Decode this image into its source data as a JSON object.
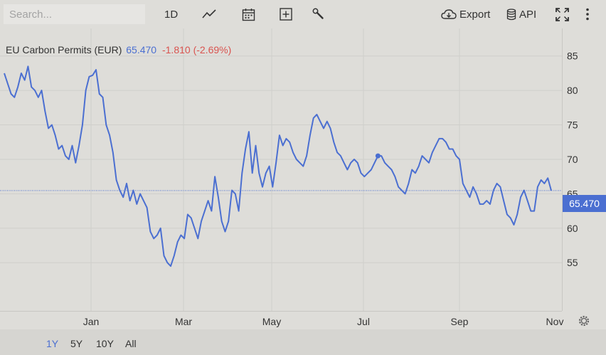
{
  "toolbar": {
    "search_placeholder": "Search...",
    "interval_label": "1D",
    "chart_type_icon": "line-chart-icon",
    "calendar_icon": "calendar-icon",
    "add_icon": "add-square-icon",
    "tools_icon": "wrench-icon",
    "export_label": "Export",
    "api_label": "API",
    "fullscreen_icon": "fullscreen-icon",
    "more_icon": "more-vertical-icon"
  },
  "legend": {
    "name": "EU Carbon Permits (EUR)",
    "last": "65.470",
    "change": "-1.810 (-2.69%)"
  },
  "price_tag": "65.470",
  "ranges": [
    "1Y",
    "5Y",
    "10Y",
    "All"
  ],
  "active_range": "1Y",
  "colors": {
    "line": "#4b6fd1",
    "down": "#d9534f",
    "background": "#deddd9",
    "grid": "#cfcecb"
  },
  "chart_data": {
    "type": "line",
    "title": "EU Carbon Permits (EUR)",
    "ylim": [
      48,
      89
    ],
    "y_ticks": [
      55,
      60,
      65,
      70,
      75,
      80,
      85
    ],
    "x_ticks": [
      "Jan",
      "Mar",
      "May",
      "Jul",
      "Sep",
      "Nov"
    ],
    "last_value": 65.47,
    "grid": true,
    "series": [
      {
        "values": [
          82.5,
          81,
          79.5,
          79,
          80.5,
          82.5,
          81.5,
          83.5,
          80.5,
          80,
          79,
          80,
          77,
          74.5,
          75,
          73.5,
          71.5,
          72,
          70.5,
          70,
          72,
          69.5,
          72,
          75,
          80,
          82,
          82.2,
          83,
          79.5,
          79,
          75,
          73.5,
          71,
          67,
          65.5,
          64.5,
          66.5,
          64,
          65.5,
          63.5,
          65,
          64,
          63,
          59.5,
          58.5,
          59,
          60,
          56,
          55,
          54.5,
          56,
          58,
          59,
          58.5,
          62,
          61.5,
          60,
          58.5,
          61,
          62.5,
          64,
          62.5,
          67.5,
          64.5,
          61,
          59.5,
          61,
          65.5,
          65,
          62.5,
          68,
          71.5,
          74,
          68,
          72,
          68,
          66,
          68,
          69,
          66,
          69.5,
          73.5,
          72,
          73,
          72.5,
          71,
          70,
          69.5,
          69,
          70.5,
          73.5,
          76,
          76.5,
          75.5,
          74.5,
          75.5,
          74.5,
          72.5,
          71,
          70.5,
          69.5,
          68.5,
          69.5,
          70,
          69.5,
          68,
          67.5,
          68,
          68.5,
          69.5,
          70.5,
          70.5,
          69.5,
          69,
          68.5,
          67.5,
          66,
          65.5,
          65,
          66.5,
          68.5,
          68,
          69,
          70.5,
          70,
          69.5,
          71,
          72,
          73,
          73,
          72.5,
          71.5,
          71.5,
          70.5,
          70,
          66.5,
          65.5,
          64.5,
          66,
          65,
          63.5,
          63.5,
          64,
          63.5,
          65.5,
          66.5,
          66,
          64,
          62,
          61.5,
          60.5,
          62,
          64.5,
          65.5,
          64,
          62.5,
          62.5,
          66,
          67,
          66.5,
          67.28,
          65.47
        ]
      }
    ]
  }
}
